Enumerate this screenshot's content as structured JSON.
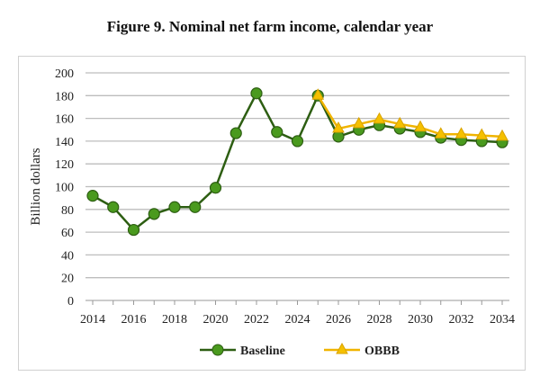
{
  "chart_data": {
    "type": "line",
    "title": "Figure 9. Nominal net farm income, calendar year",
    "xlabel": "",
    "ylabel": "Billion dollars",
    "ylim": [
      0,
      200
    ],
    "yticks": [
      0,
      20,
      40,
      60,
      80,
      100,
      120,
      140,
      160,
      180,
      200
    ],
    "xlim": [
      2014,
      2034
    ],
    "xticks": [
      2014,
      2016,
      2018,
      2020,
      2022,
      2024,
      2026,
      2028,
      2030,
      2032,
      2034
    ],
    "grid": true,
    "legend": "bottom",
    "series": [
      {
        "name": "Baseline",
        "color": "#3f7f1a",
        "marker": "circle",
        "x": [
          2014,
          2015,
          2016,
          2017,
          2018,
          2019,
          2020,
          2021,
          2022,
          2023,
          2024,
          2025,
          2026,
          2027,
          2028,
          2029,
          2030,
          2031,
          2032,
          2033,
          2034
        ],
        "values": [
          92,
          82,
          62,
          76,
          82,
          82,
          99,
          147,
          182,
          148,
          140,
          180,
          144,
          150,
          154,
          151,
          148,
          143,
          141,
          140,
          139
        ]
      },
      {
        "name": "OBBB",
        "color": "#f0b400",
        "marker": "triangle",
        "x": [
          2025,
          2026,
          2027,
          2028,
          2029,
          2030,
          2031,
          2032,
          2033,
          2034
        ],
        "values": [
          180,
          151,
          155,
          159,
          155,
          152,
          146,
          146,
          145,
          144
        ]
      }
    ]
  }
}
